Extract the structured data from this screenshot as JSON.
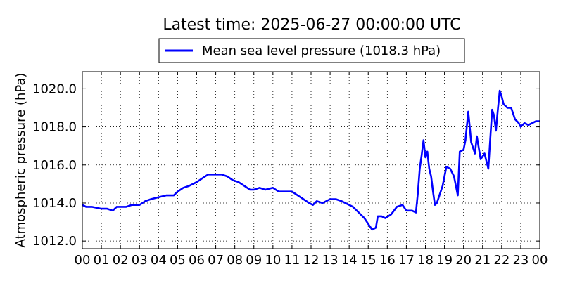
{
  "chart_data": {
    "type": "line",
    "title": "Latest time: 2025-06-27 00:00:00 UTC",
    "ylabel": "Atmospheric pressure (hPa)",
    "xlabel": "",
    "grid": true,
    "legend_placement": "top-center",
    "x_tick_labels": [
      "00",
      "01",
      "02",
      "03",
      "04",
      "05",
      "06",
      "07",
      "08",
      "09",
      "10",
      "11",
      "12",
      "13",
      "14",
      "15",
      "16",
      "17",
      "18",
      "19",
      "20",
      "21",
      "22",
      "23",
      "00"
    ],
    "y_tick_labels": [
      "1012.0",
      "1014.0",
      "1016.0",
      "1018.0",
      "1020.0"
    ],
    "ylim": [
      1011.6,
      1020.9
    ],
    "xlim": [
      0,
      24
    ],
    "series": [
      {
        "name": "Mean sea level pressure (1018.3 hPa)",
        "color": "#0000ff",
        "x": [
          0,
          0.2,
          0.5,
          1,
          1.3,
          1.6,
          1.8,
          2,
          2.3,
          2.6,
          3,
          3.3,
          3.6,
          4,
          4.4,
          4.8,
          5,
          5.3,
          5.6,
          6,
          6.3,
          6.6,
          7,
          7.3,
          7.6,
          7.9,
          8.2,
          8.5,
          8.8,
          9,
          9.3,
          9.6,
          10,
          10.3,
          10.6,
          11,
          11.3,
          11.6,
          11.9,
          12.1,
          12.3,
          12.6,
          13,
          13.3,
          13.6,
          14,
          14.2,
          14.5,
          14.8,
          15,
          15.2,
          15.4,
          15.5,
          15.7,
          15.9,
          16.2,
          16.5,
          16.8,
          17,
          17.1,
          17.3,
          17.5,
          17.6,
          17.7,
          17.8,
          17.9,
          18,
          18.1,
          18.2,
          18.3,
          18.4,
          18.5,
          18.6,
          18.7,
          18.9,
          19.1,
          19.3,
          19.5,
          19.7,
          19.8,
          20,
          20.1,
          20.25,
          20.4,
          20.6,
          20.7,
          20.9,
          21.1,
          21.3,
          21.5,
          21.6,
          21.7,
          21.8,
          21.9,
          22,
          22.1,
          22.3,
          22.5,
          22.7,
          22.9,
          23,
          23.2,
          23.4,
          23.6,
          23.8,
          24
        ],
        "y": [
          1013.9,
          1013.8,
          1013.8,
          1013.7,
          1013.7,
          1013.6,
          1013.8,
          1013.8,
          1013.8,
          1013.9,
          1013.9,
          1014.1,
          1014.2,
          1014.3,
          1014.4,
          1014.4,
          1014.6,
          1014.8,
          1014.9,
          1015.1,
          1015.3,
          1015.5,
          1015.5,
          1015.5,
          1015.4,
          1015.2,
          1015.1,
          1014.9,
          1014.7,
          1014.7,
          1014.8,
          1014.7,
          1014.8,
          1014.6,
          1014.6,
          1014.6,
          1014.4,
          1014.2,
          1014.0,
          1013.9,
          1014.1,
          1014.0,
          1014.2,
          1014.2,
          1014.1,
          1013.9,
          1013.8,
          1013.5,
          1013.2,
          1012.9,
          1012.6,
          1012.7,
          1013.3,
          1013.3,
          1013.2,
          1013.4,
          1013.8,
          1013.9,
          1013.6,
          1013.6,
          1013.6,
          1013.5,
          1014.5,
          1015.8,
          1016.5,
          1017.3,
          1016.4,
          1016.7,
          1015.8,
          1015.4,
          1014.6,
          1013.9,
          1014.0,
          1014.3,
          1014.9,
          1015.9,
          1015.8,
          1015.4,
          1014.4,
          1016.7,
          1016.8,
          1017.3,
          1018.8,
          1017.2,
          1016.6,
          1017.5,
          1016.3,
          1016.6,
          1015.8,
          1018.9,
          1018.6,
          1017.8,
          1018.9,
          1019.9,
          1019.6,
          1019.2,
          1019.0,
          1019.0,
          1018.4,
          1018.2,
          1018.0,
          1018.2,
          1018.1,
          1018.2,
          1018.3,
          1018.3
        ]
      }
    ]
  }
}
